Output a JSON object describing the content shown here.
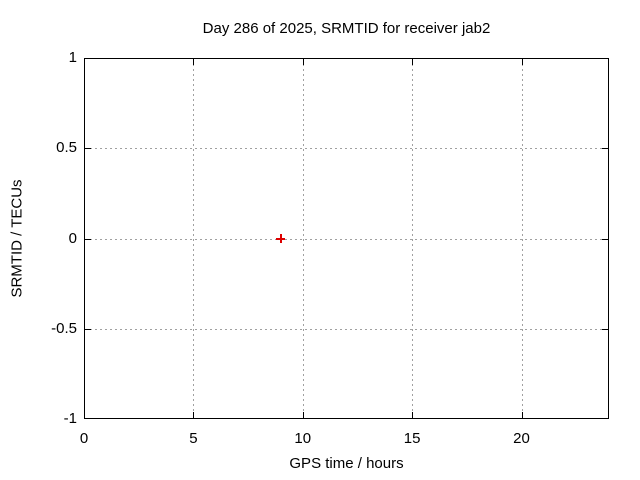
{
  "chart_data": {
    "type": "scatter",
    "title": "Day 286 of 2025, SRMTID for receiver jab2",
    "xlabel": "GPS time / hours",
    "ylabel": "SRMTID / TECUs",
    "xlim": [
      0,
      24
    ],
    "ylim": [
      -1,
      1
    ],
    "xticks": [
      {
        "value": 0,
        "label": "0"
      },
      {
        "value": 5,
        "label": "5"
      },
      {
        "value": 10,
        "label": "10"
      },
      {
        "value": 15,
        "label": "15"
      },
      {
        "value": 20,
        "label": "20"
      }
    ],
    "yticks": [
      {
        "value": -1,
        "label": "-1"
      },
      {
        "value": -0.5,
        "label": "-0.5"
      },
      {
        "value": 0,
        "label": "0"
      },
      {
        "value": 0.5,
        "label": "0.5"
      },
      {
        "value": 1,
        "label": "1"
      }
    ],
    "grid": true,
    "legend_position": "none",
    "series": [
      {
        "name": "SRMTID",
        "marker": "plus",
        "color": "#dd0000",
        "points": [
          {
            "x": 9,
            "y": 0
          }
        ]
      }
    ],
    "styles": {
      "background": "#ffffff",
      "border_color": "#000000",
      "grid_color": "#a0a0a0",
      "text_color": "#000000"
    }
  }
}
